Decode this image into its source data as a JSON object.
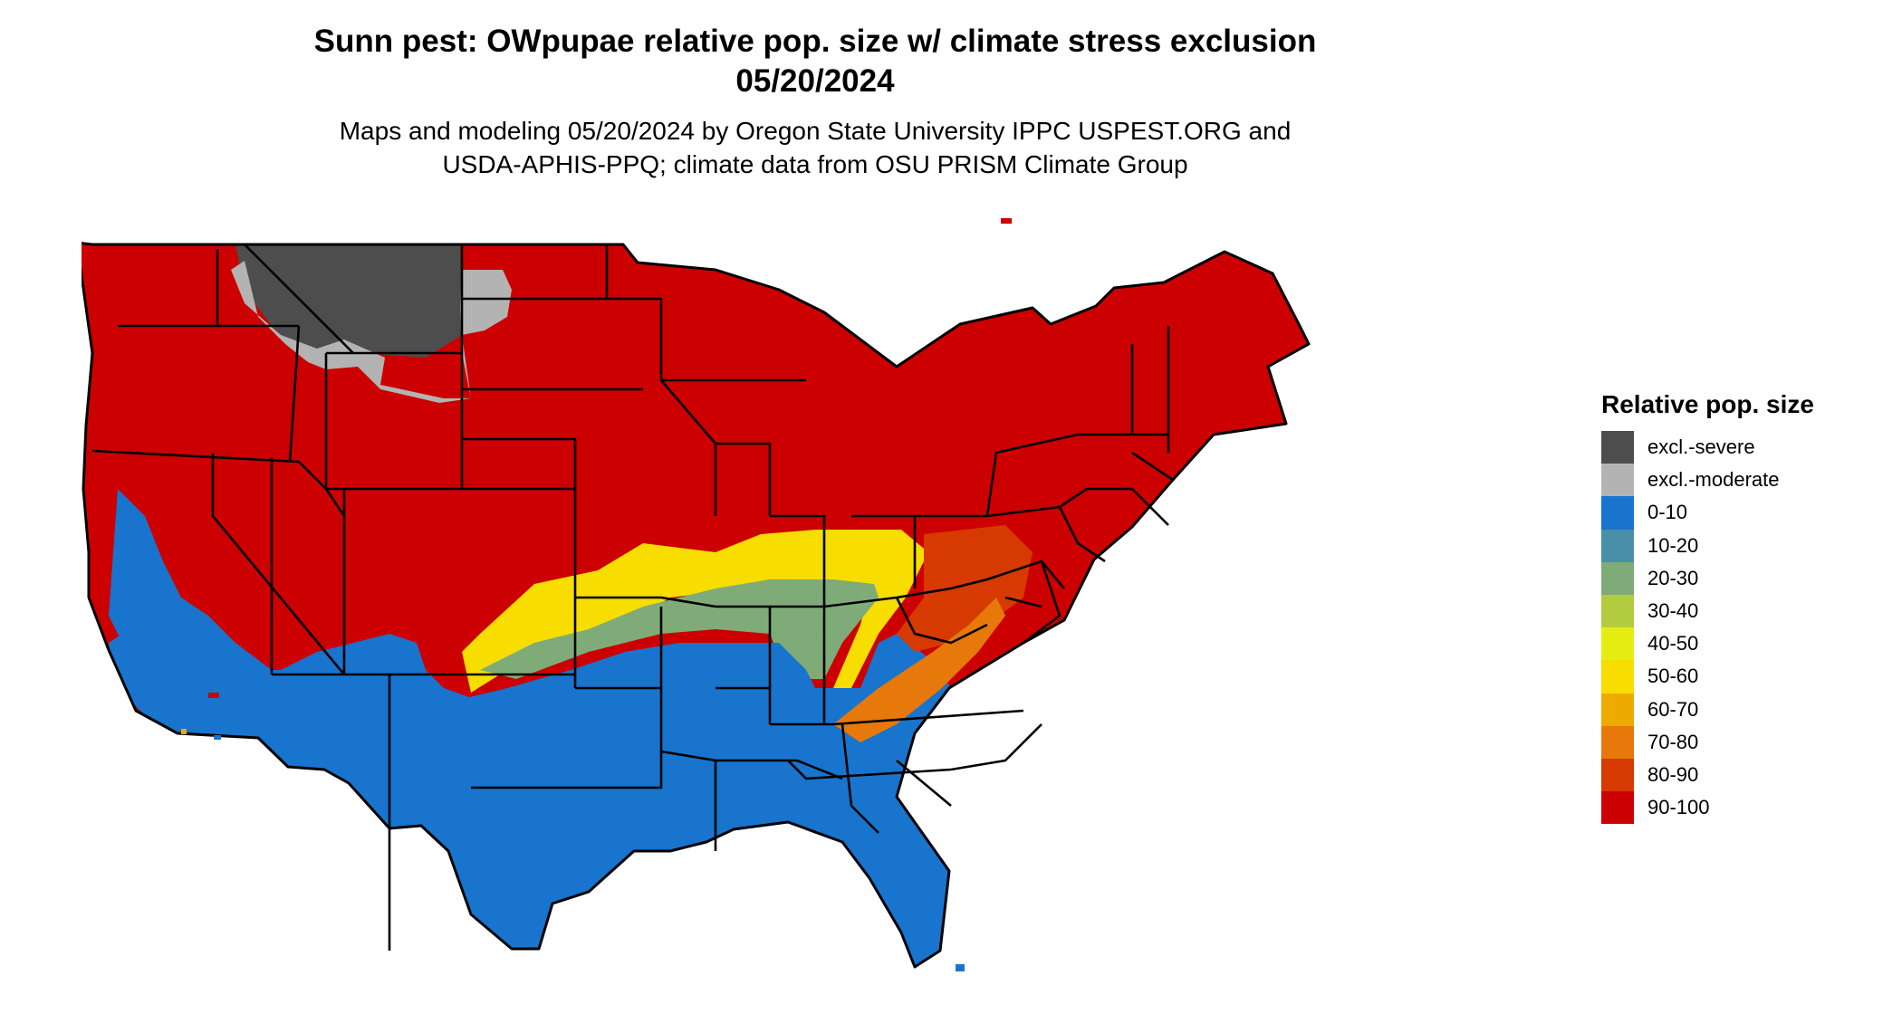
{
  "title": {
    "line1": "Sunn pest: OWpupae relative pop. size w/ climate stress exclusion",
    "line2": "05/20/2024"
  },
  "subtitle": {
    "line1": "Maps and modeling 05/20/2024 by Oregon State University IPPC USPEST.ORG and",
    "line2": "USDA-APHIS-PPQ; climate data from OSU PRISM Climate Group"
  },
  "legend": {
    "title": "Relative pop. size",
    "items": [
      {
        "label": "excl.-severe",
        "color": "#4d4d4d"
      },
      {
        "label": "excl.-moderate",
        "color": "#b3b3b3"
      },
      {
        "label": "0-10",
        "color": "#1874cd"
      },
      {
        "label": "10-20",
        "color": "#4a8fa8"
      },
      {
        "label": "20-30",
        "color": "#7fab78"
      },
      {
        "label": "30-40",
        "color": "#b3cc3f"
      },
      {
        "label": "40-50",
        "color": "#e6ed12"
      },
      {
        "label": "50-60",
        "color": "#f7dd00"
      },
      {
        "label": "60-70",
        "color": "#eeaa00"
      },
      {
        "label": "70-80",
        "color": "#e6790a"
      },
      {
        "label": "80-90",
        "color": "#d63a00"
      },
      {
        "label": "90-100",
        "color": "#cc0000"
      }
    ]
  },
  "map": {
    "region": "contiguous-united-states",
    "boundary_color": "#000000"
  }
}
